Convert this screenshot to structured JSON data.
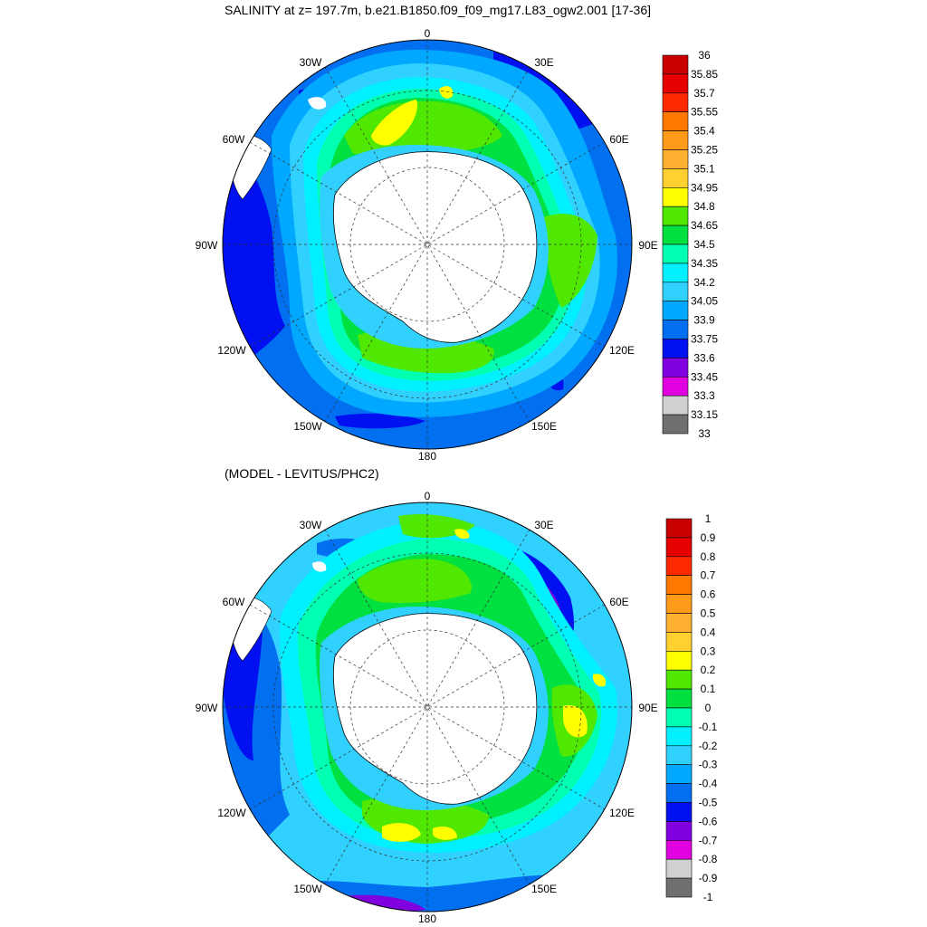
{
  "maps": [
    {
      "id": "top",
      "title": "SALINITY at z= 197.7m, b.e21.B1850.f09_f09_mg17.L83_ogw2.001 [17-36]",
      "lon_labels": [
        "0",
        "30E",
        "60E",
        "90E",
        "120E",
        "150E",
        "180",
        "150W",
        "120W",
        "90W",
        "60W",
        "30W"
      ],
      "colorbar": {
        "levels": [
          "36",
          "35.85",
          "35.7",
          "35.55",
          "35.4",
          "35.25",
          "35.1",
          "34.95",
          "34.8",
          "34.65",
          "34.5",
          "34.35",
          "34.2",
          "34.05",
          "33.9",
          "33.75",
          "33.6",
          "33.45",
          "33.3",
          "33.15",
          "33"
        ],
        "colors": [
          "#c80000",
          "#e60000",
          "#ff2a00",
          "#ff7800",
          "#ff9a1a",
          "#ffb030",
          "#ffd030",
          "#ffff00",
          "#50e800",
          "#00e040",
          "#00ffb0",
          "#00f0ff",
          "#30d0ff",
          "#00a8ff",
          "#0070f0",
          "#0010f0",
          "#8000e0",
          "#e000e0",
          "#d0d0d0",
          "#707070"
        ]
      }
    },
    {
      "id": "bottom",
      "title": "(MODEL - LEVITUS/PHC2)",
      "lon_labels": [
        "0",
        "30E",
        "60E",
        "90E",
        "120E",
        "150E",
        "180",
        "150W",
        "120W",
        "90W",
        "60W",
        "30W"
      ],
      "colorbar": {
        "levels": [
          "1",
          "0.9",
          "0.8",
          "0.7",
          "0.6",
          "0.5",
          "0.4",
          "0.3",
          "0.2",
          "0.1",
          "0",
          "-0.1",
          "-0.2",
          "-0.3",
          "-0.4",
          "-0.5",
          "-0.6",
          "-0.7",
          "-0.8",
          "-0.9",
          "-1"
        ],
        "colors": [
          "#c80000",
          "#e60000",
          "#ff2a00",
          "#ff7800",
          "#ff9a1a",
          "#ffb030",
          "#ffd030",
          "#ffff00",
          "#50e800",
          "#00e040",
          "#00ffb0",
          "#00f0ff",
          "#30d0ff",
          "#00a8ff",
          "#0070f0",
          "#0010f0",
          "#8000e0",
          "#e000e0",
          "#d0d0d0",
          "#707070"
        ]
      }
    }
  ]
}
